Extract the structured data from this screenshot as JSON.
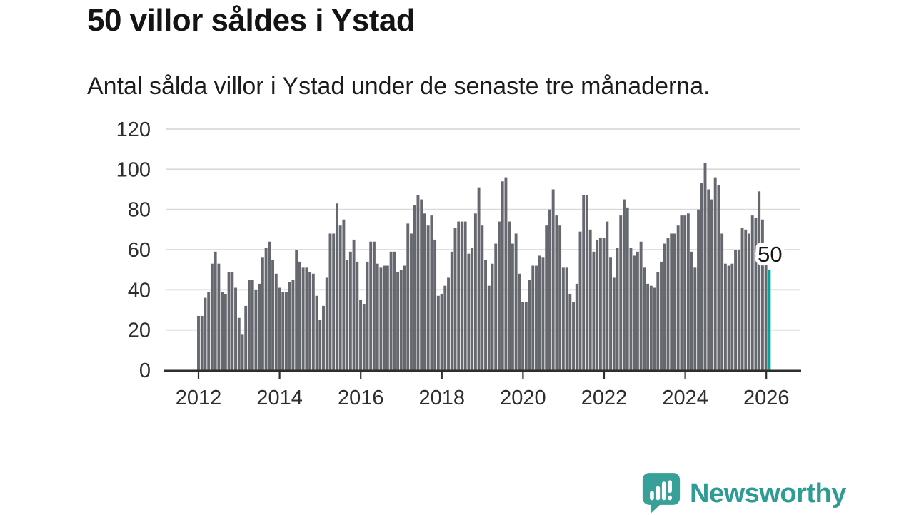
{
  "header": {
    "title": "50 villor såldes i Ystad",
    "subtitle": "Antal sålda villor i Ystad under de senaste tre månaderna."
  },
  "chart_data": {
    "type": "bar",
    "title": "50 villor såldes i Ystad",
    "subtitle": "Antal sålda villor i Ystad under de senaste tre månaderna.",
    "xlabel": "",
    "ylabel": "",
    "ylim": [
      0,
      120
    ],
    "y_ticks": [
      0,
      20,
      40,
      60,
      80,
      100,
      120
    ],
    "x_tick_labels": [
      "2012",
      "2014",
      "2016",
      "2018",
      "2020",
      "2022",
      "2024",
      "2026"
    ],
    "grid": "horizontal",
    "legend": "none",
    "frequency": "monthly",
    "x_start": "2012-01",
    "x_end": "2026-02",
    "values": [
      27,
      27,
      36,
      39,
      53,
      59,
      53,
      39,
      38,
      49,
      49,
      41,
      26,
      18,
      32,
      45,
      45,
      40,
      43,
      56,
      61,
      64,
      55,
      48,
      41,
      39,
      39,
      44,
      45,
      60,
      54,
      51,
      51,
      49,
      48,
      37,
      25,
      32,
      46,
      68,
      68,
      83,
      72,
      75,
      55,
      59,
      65,
      54,
      35,
      33,
      54,
      64,
      64,
      53,
      51,
      52,
      52,
      59,
      59,
      49,
      50,
      52,
      73,
      68,
      82,
      87,
      85,
      78,
      72,
      77,
      65,
      37,
      38,
      42,
      46,
      59,
      71,
      74,
      74,
      74,
      58,
      61,
      78,
      91,
      72,
      55,
      42,
      53,
      63,
      74,
      94,
      96,
      74,
      63,
      68,
      48,
      34,
      34,
      45,
      52,
      52,
      57,
      56,
      72,
      80,
      90,
      77,
      72,
      51,
      51,
      38,
      34,
      43,
      69,
      87,
      87,
      70,
      59,
      65,
      66,
      66,
      74,
      56,
      46,
      61,
      77,
      85,
      81,
      61,
      57,
      59,
      64,
      51,
      43,
      42,
      41,
      49,
      54,
      63,
      66,
      68,
      68,
      72,
      77,
      77,
      78,
      59,
      51,
      80,
      93,
      103,
      90,
      85,
      96,
      92,
      68,
      53,
      52,
      53,
      60,
      60,
      71,
      70,
      68,
      77,
      76,
      89,
      75,
      55,
      50
    ],
    "highlight_last": {
      "value": 50,
      "label": "50"
    },
    "colors": {
      "bar": "#66686f",
      "highlight": "#00a5a1",
      "grid": "#d9d9d9",
      "axis": "#2e2e2e",
      "tick_text": "#2e2e2e",
      "annotation_text": "#161616",
      "annotation_halo": "#ffffff"
    }
  },
  "footer": {
    "brand": "Newsworthy",
    "brand_color": "#2e9b95",
    "logo_icon": "speech-bubble-bar-chart-exclamation"
  }
}
